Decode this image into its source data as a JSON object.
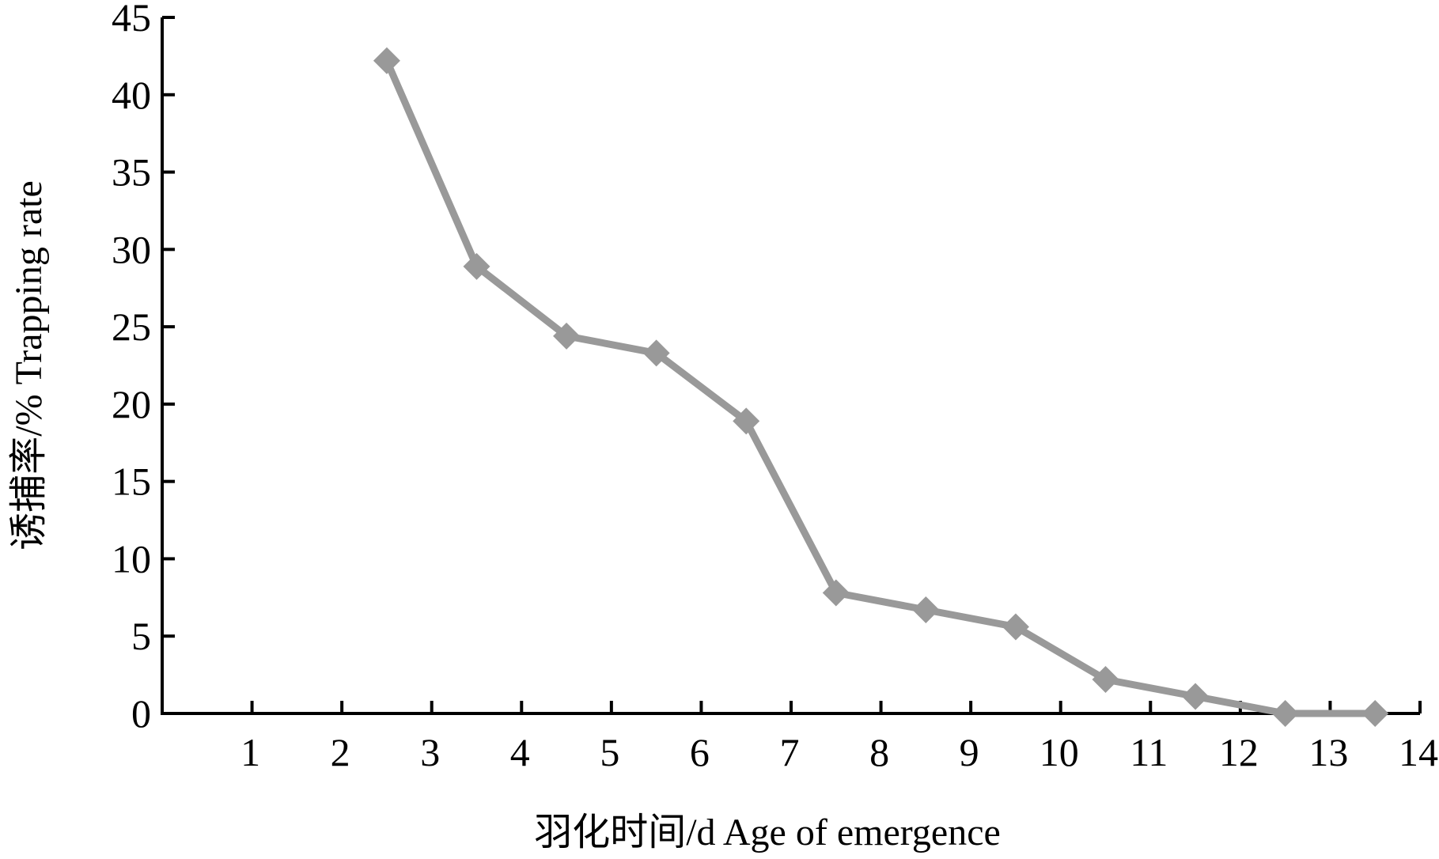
{
  "chart_data": {
    "type": "line",
    "xlabel": "羽化时间/d  Age of emergence",
    "ylabel": "诱捕率/%  Trapping rate",
    "xlim": [
      0,
      14
    ],
    "ylim": [
      0,
      45
    ],
    "x_ticks": [
      1,
      2,
      3,
      4,
      5,
      6,
      7,
      8,
      9,
      10,
      11,
      12,
      13,
      14
    ],
    "y_ticks": [
      0,
      5,
      10,
      15,
      20,
      25,
      30,
      35,
      40,
      45
    ],
    "grid": false,
    "legend": "none",
    "series": [
      {
        "color": "#999999",
        "marker": "diamond",
        "x": [
          2.5,
          3.5,
          4.5,
          5.5,
          6.5,
          7.5,
          8.5,
          9.5,
          10.5,
          11.5,
          12.5,
          13.5
        ],
        "y": [
          42.2,
          28.9,
          24.4,
          23.3,
          18.9,
          7.8,
          6.7,
          5.6,
          2.2,
          1.1,
          0,
          0
        ]
      }
    ]
  }
}
